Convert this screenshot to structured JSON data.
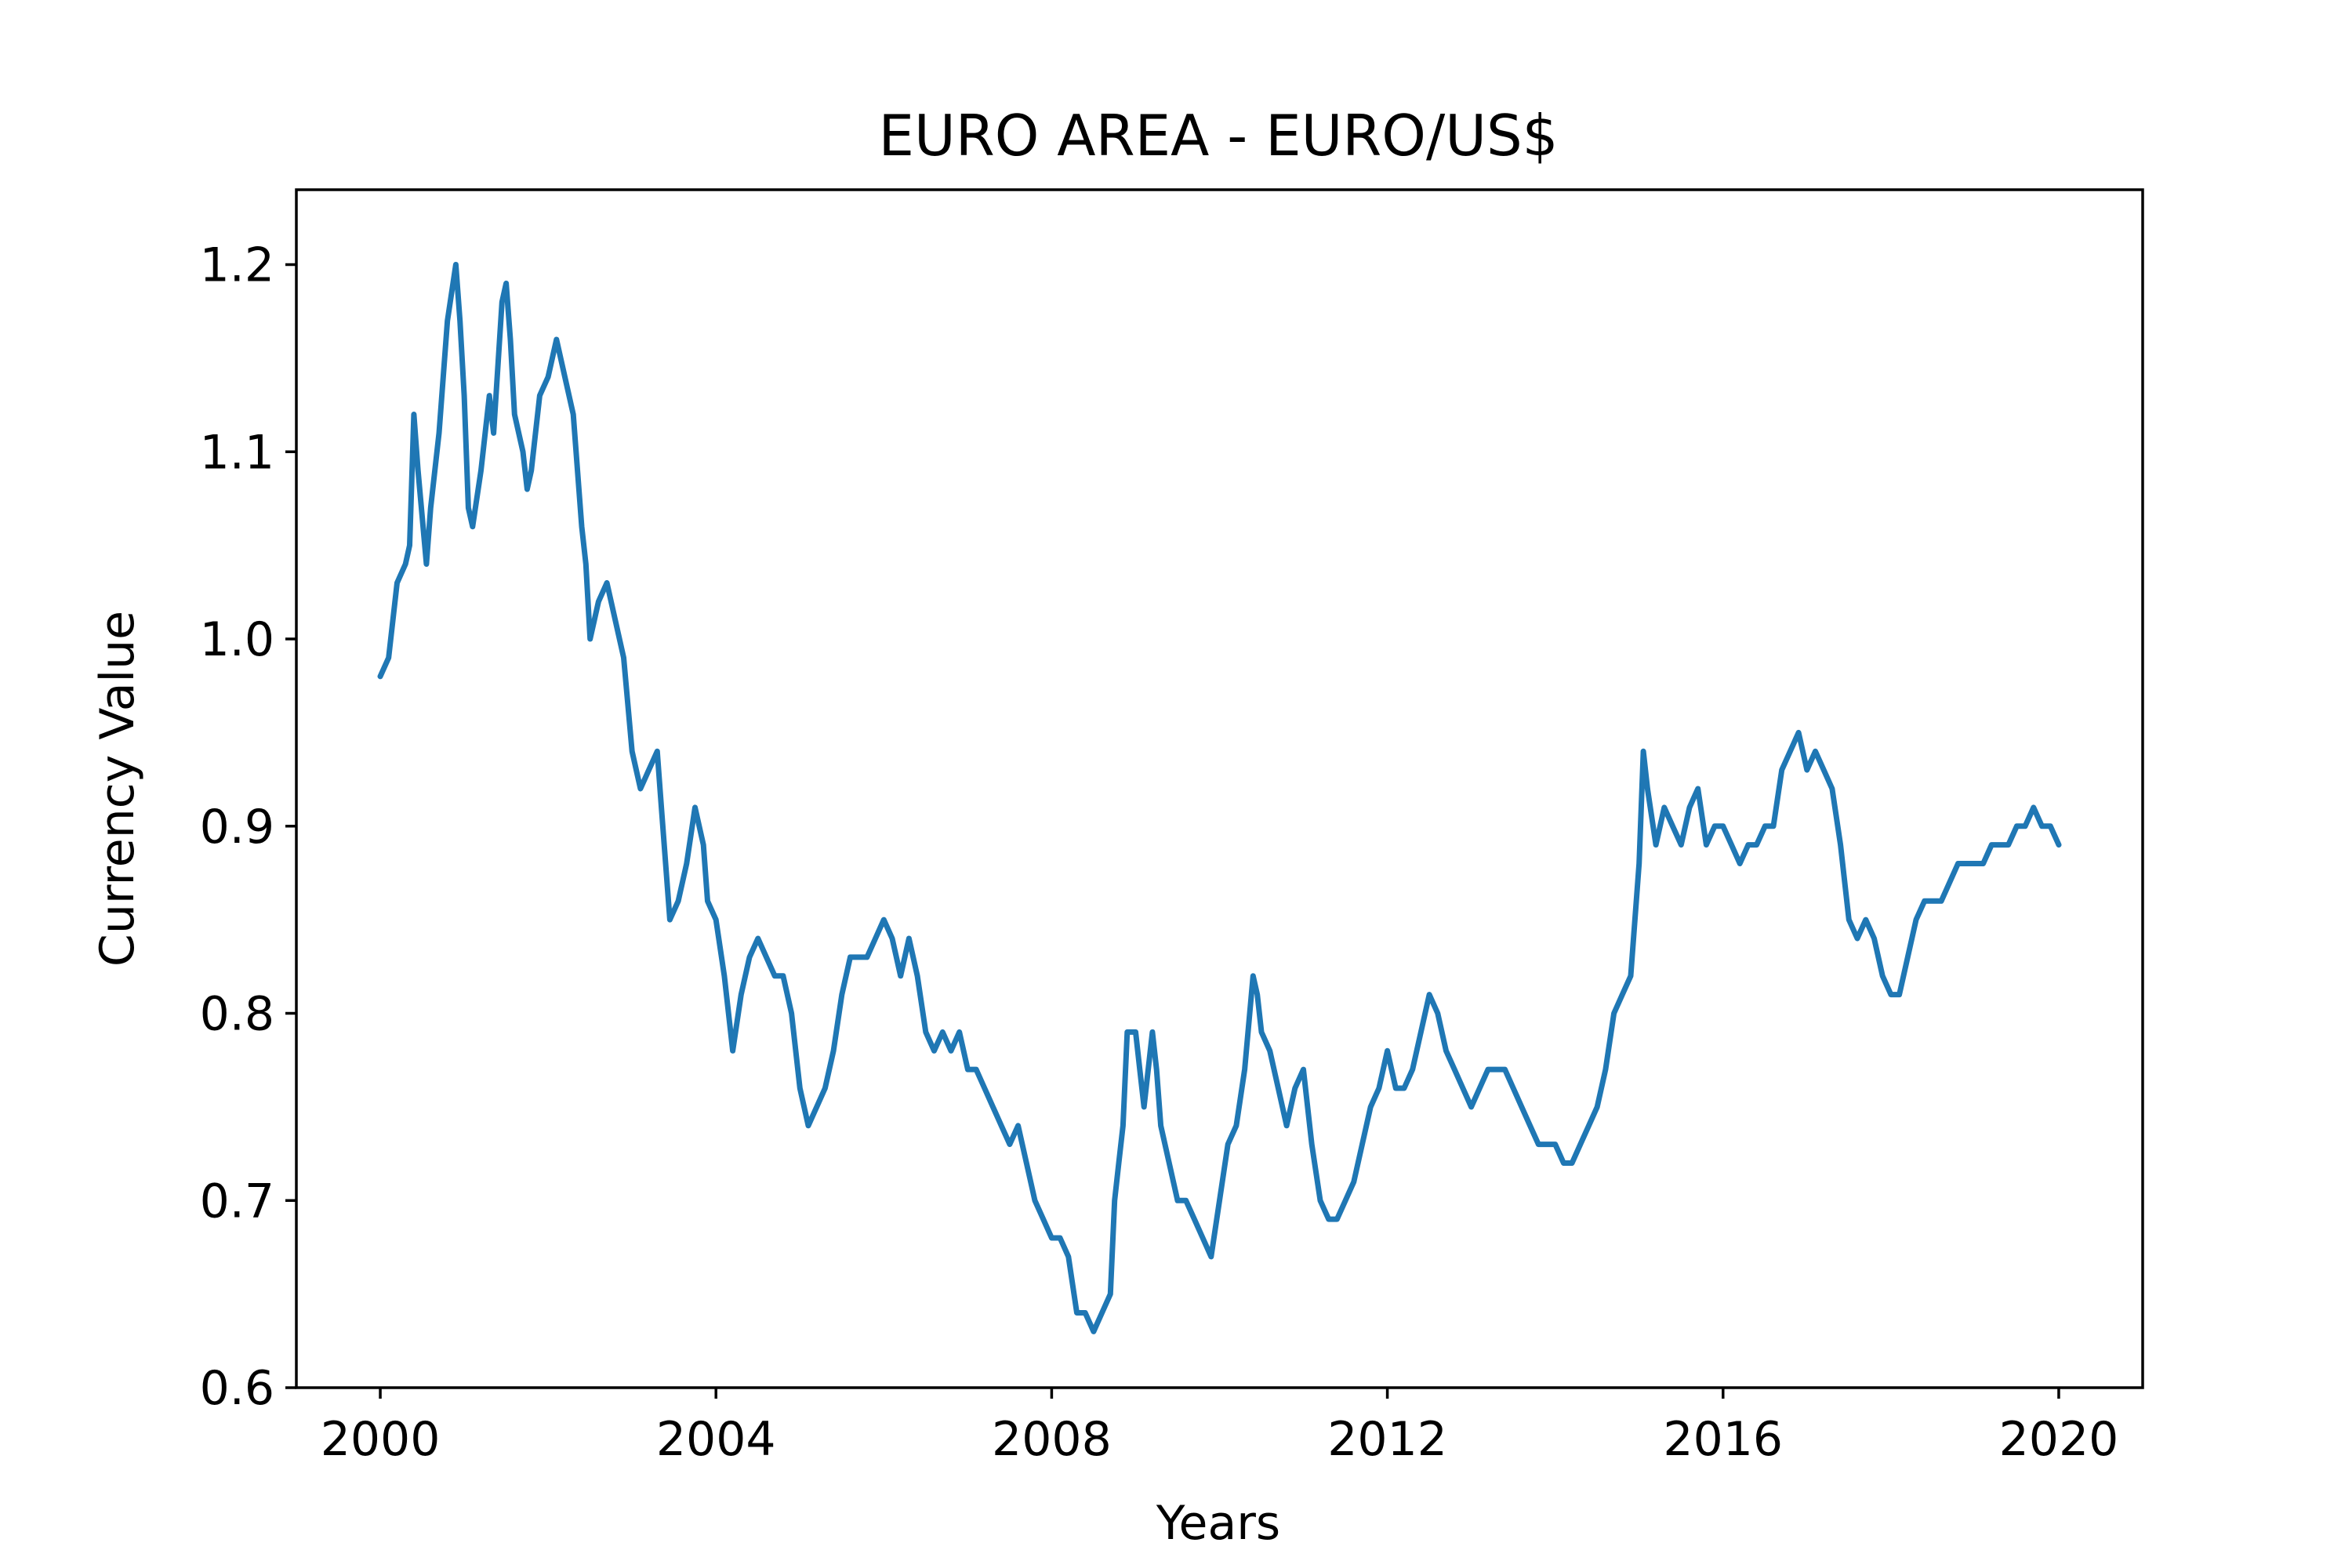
{
  "chart_data": {
    "type": "line",
    "title": "EURO AREA - EURO/US$",
    "xlabel": "Years",
    "ylabel": "Currency Value",
    "xlim": [
      1999,
      2021
    ],
    "ylim": [
      0.6,
      1.24
    ],
    "x_ticks": [
      2000,
      2004,
      2008,
      2012,
      2016,
      2020
    ],
    "x_tick_labels": [
      "2000",
      "2004",
      "2008",
      "2012",
      "2016",
      "2020"
    ],
    "y_ticks": [
      0.6,
      0.7,
      0.8,
      0.9,
      1.0,
      1.1,
      1.2
    ],
    "y_tick_labels": [
      "0.6",
      "0.7",
      "0.8",
      "0.9",
      "1.0",
      "1.1",
      "1.2"
    ],
    "grid": false,
    "legend": "none",
    "series": [
      {
        "color": "#1f77b4",
        "x": [
          2000.0,
          2000.1,
          2000.2,
          2000.3,
          2000.35,
          2000.4,
          2000.45,
          2000.55,
          2000.6,
          2000.7,
          2000.8,
          2000.9,
          2000.95,
          2001.0,
          2001.05,
          2001.1,
          2001.2,
          2001.3,
          2001.35,
          2001.45,
          2001.5,
          2001.55,
          2001.6,
          2001.7,
          2001.75,
          2001.8,
          2001.9,
          2002.0,
          2002.1,
          2002.2,
          2002.3,
          2002.4,
          2002.45,
          2002.5,
          2002.6,
          2002.7,
          2002.8,
          2002.9,
          2003.0,
          2003.1,
          2003.2,
          2003.3,
          2003.35,
          2003.45,
          2003.55,
          2003.65,
          2003.75,
          2003.85,
          2003.9,
          2004.0,
          2004.1,
          2004.2,
          2004.3,
          2004.4,
          2004.5,
          2004.6,
          2004.7,
          2004.8,
          2004.9,
          2005.0,
          2005.1,
          2005.2,
          2005.3,
          2005.4,
          2005.5,
          2005.6,
          2005.7,
          2005.8,
          2005.9,
          2006.0,
          2006.1,
          2006.2,
          2006.3,
          2006.4,
          2006.5,
          2006.6,
          2006.7,
          2006.8,
          2006.9,
          2007.0,
          2007.1,
          2007.2,
          2007.3,
          2007.4,
          2007.5,
          2007.6,
          2007.7,
          2007.8,
          2007.9,
          2008.0,
          2008.1,
          2008.2,
          2008.3,
          2008.4,
          2008.5,
          2008.6,
          2008.7,
          2008.75,
          2008.8,
          2008.85,
          2008.9,
          2009.0,
          2009.05,
          2009.1,
          2009.2,
          2009.25,
          2009.3,
          2009.4,
          2009.5,
          2009.6,
          2009.7,
          2009.8,
          2009.9,
          2010.0,
          2010.1,
          2010.2,
          2010.3,
          2010.4,
          2010.45,
          2010.5,
          2010.6,
          2010.7,
          2010.8,
          2010.9,
          2011.0,
          2011.1,
          2011.2,
          2011.3,
          2011.4,
          2011.5,
          2011.6,
          2011.7,
          2011.8,
          2011.9,
          2012.0,
          2012.1,
          2012.2,
          2012.3,
          2012.4,
          2012.5,
          2012.6,
          2012.7,
          2012.8,
          2012.9,
          2013.0,
          2013.1,
          2013.2,
          2013.3,
          2013.4,
          2013.5,
          2013.6,
          2013.7,
          2013.8,
          2013.9,
          2014.0,
          2014.1,
          2014.2,
          2014.3,
          2014.4,
          2014.5,
          2014.6,
          2014.7,
          2014.8,
          2014.9,
          2015.0,
          2015.05,
          2015.1,
          2015.2,
          2015.3,
          2015.4,
          2015.5,
          2015.6,
          2015.7,
          2015.8,
          2015.9,
          2016.0,
          2016.1,
          2016.2,
          2016.3,
          2016.4,
          2016.5,
          2016.6,
          2016.7,
          2016.8,
          2016.9,
          2017.0,
          2017.1,
          2017.2,
          2017.3,
          2017.4,
          2017.5,
          2017.6,
          2017.7,
          2017.8,
          2017.9,
          2018.0,
          2018.1,
          2018.2,
          2018.3,
          2018.4,
          2018.5,
          2018.6,
          2018.7,
          2018.8,
          2018.9,
          2019.0,
          2019.1,
          2019.2,
          2019.3,
          2019.4,
          2019.5,
          2019.6,
          2019.7,
          2019.8,
          2019.9,
          2020.0
        ],
        "values": [
          0.98,
          0.99,
          1.03,
          1.04,
          1.05,
          1.12,
          1.09,
          1.04,
          1.07,
          1.11,
          1.17,
          1.2,
          1.17,
          1.13,
          1.07,
          1.06,
          1.09,
          1.13,
          1.11,
          1.18,
          1.19,
          1.16,
          1.12,
          1.1,
          1.08,
          1.09,
          1.13,
          1.14,
          1.16,
          1.14,
          1.12,
          1.06,
          1.04,
          1.0,
          1.02,
          1.03,
          1.01,
          0.99,
          0.94,
          0.92,
          0.93,
          0.94,
          0.91,
          0.85,
          0.86,
          0.88,
          0.91,
          0.89,
          0.86,
          0.85,
          0.82,
          0.78,
          0.81,
          0.83,
          0.84,
          0.83,
          0.82,
          0.82,
          0.8,
          0.76,
          0.74,
          0.75,
          0.76,
          0.78,
          0.81,
          0.83,
          0.83,
          0.83,
          0.84,
          0.85,
          0.84,
          0.82,
          0.84,
          0.82,
          0.79,
          0.78,
          0.79,
          0.78,
          0.79,
          0.77,
          0.77,
          0.76,
          0.75,
          0.74,
          0.73,
          0.74,
          0.72,
          0.7,
          0.69,
          0.68,
          0.68,
          0.67,
          0.64,
          0.64,
          0.63,
          0.64,
          0.65,
          0.7,
          0.72,
          0.74,
          0.79,
          0.79,
          0.77,
          0.75,
          0.79,
          0.77,
          0.74,
          0.72,
          0.7,
          0.7,
          0.69,
          0.68,
          0.67,
          0.7,
          0.73,
          0.74,
          0.77,
          0.82,
          0.81,
          0.79,
          0.78,
          0.76,
          0.74,
          0.76,
          0.77,
          0.73,
          0.7,
          0.69,
          0.69,
          0.7,
          0.71,
          0.73,
          0.75,
          0.76,
          0.78,
          0.76,
          0.76,
          0.77,
          0.79,
          0.81,
          0.8,
          0.78,
          0.77,
          0.76,
          0.75,
          0.76,
          0.77,
          0.77,
          0.77,
          0.76,
          0.75,
          0.74,
          0.73,
          0.73,
          0.73,
          0.72,
          0.72,
          0.73,
          0.74,
          0.75,
          0.77,
          0.8,
          0.81,
          0.82,
          0.88,
          0.94,
          0.92,
          0.89,
          0.91,
          0.9,
          0.89,
          0.91,
          0.92,
          0.89,
          0.9,
          0.9,
          0.89,
          0.88,
          0.89,
          0.89,
          0.9,
          0.9,
          0.93,
          0.94,
          0.95,
          0.93,
          0.94,
          0.93,
          0.92,
          0.89,
          0.85,
          0.84,
          0.85,
          0.84,
          0.82,
          0.81,
          0.81,
          0.83,
          0.85,
          0.86,
          0.86,
          0.86,
          0.87,
          0.88,
          0.88,
          0.88,
          0.88,
          0.89,
          0.89,
          0.89,
          0.9,
          0.9,
          0.91,
          0.9,
          0.9,
          0.89
        ]
      }
    ]
  }
}
